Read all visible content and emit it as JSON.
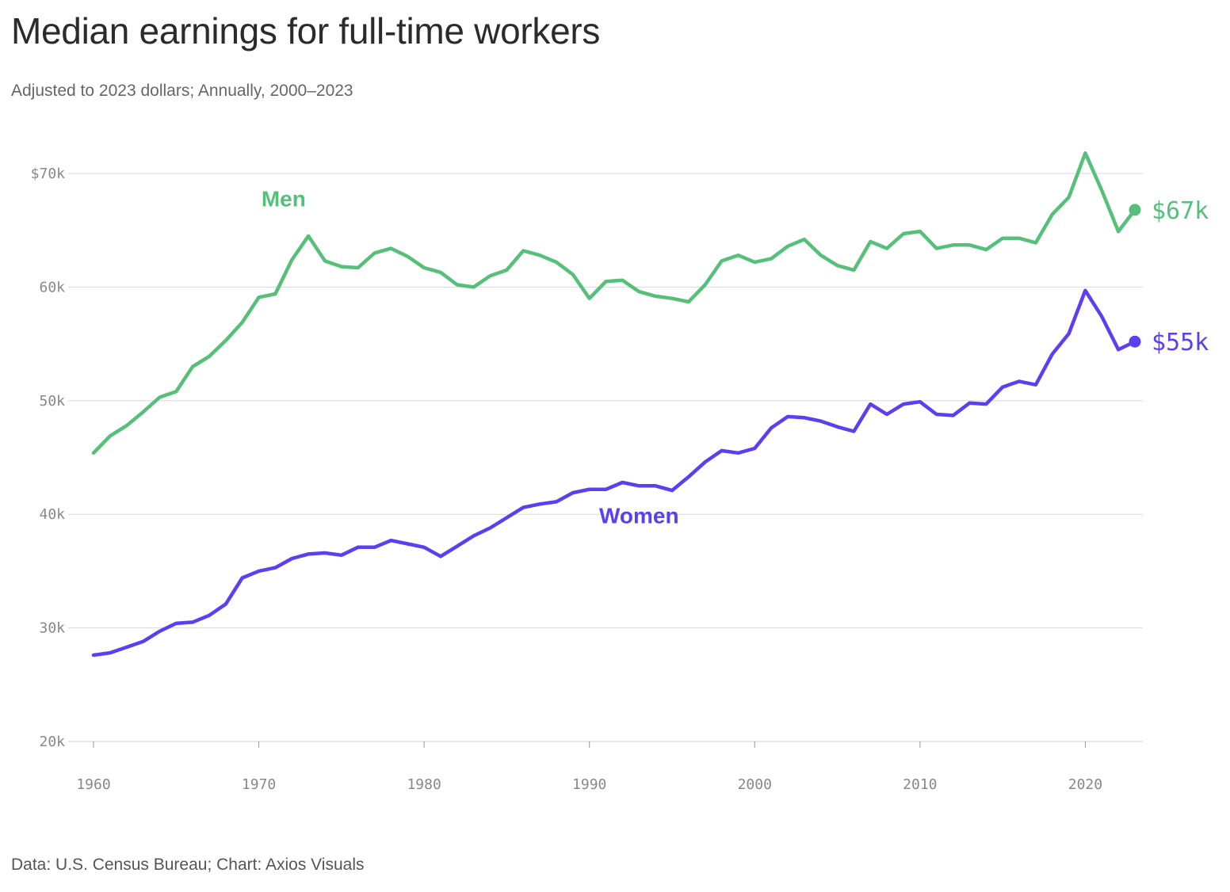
{
  "header": {
    "title": "Median earnings for full-time workers",
    "subtitle": "Adjusted to 2023 dollars; Annually, 2000–2023"
  },
  "footer": {
    "source": "Data: U.S. Census Bureau; Chart: Axios Visuals"
  },
  "colors": {
    "men": "#56c07a",
    "women": "#5b3ff0",
    "grid": "#d9d9d9",
    "axis": "#cccccc"
  },
  "chart_data": {
    "type": "line",
    "title": "Median earnings for full-time workers",
    "subtitle": "Adjusted to 2023 dollars; Annually, 2000–2023",
    "xlabel": "",
    "ylabel": "",
    "xlim": [
      1960,
      2023
    ],
    "ylim": [
      20000,
      70000
    ],
    "grid": true,
    "y_ticks": [
      {
        "value": 70000,
        "label": "$70k"
      },
      {
        "value": 60000,
        "label": "60k"
      },
      {
        "value": 50000,
        "label": "50k"
      },
      {
        "value": 40000,
        "label": "40k"
      },
      {
        "value": 30000,
        "label": "30k"
      },
      {
        "value": 20000,
        "label": "20k"
      }
    ],
    "x_ticks": [
      {
        "value": 1960,
        "label": "1960"
      },
      {
        "value": 1970,
        "label": "1970"
      },
      {
        "value": 1980,
        "label": "1980"
      },
      {
        "value": 1990,
        "label": "1990"
      },
      {
        "value": 2000,
        "label": "2000"
      },
      {
        "value": 2010,
        "label": "2010"
      },
      {
        "value": 2020,
        "label": "2020"
      }
    ],
    "x": [
      1960,
      1961,
      1962,
      1963,
      1964,
      1965,
      1966,
      1967,
      1968,
      1969,
      1970,
      1971,
      1972,
      1973,
      1974,
      1975,
      1976,
      1977,
      1978,
      1979,
      1980,
      1981,
      1982,
      1983,
      1984,
      1985,
      1986,
      1987,
      1988,
      1989,
      1990,
      1991,
      1992,
      1993,
      1994,
      1995,
      1996,
      1997,
      1998,
      1999,
      2000,
      2001,
      2002,
      2003,
      2004,
      2005,
      2006,
      2007,
      2008,
      2009,
      2010,
      2011,
      2012,
      2013,
      2014,
      2015,
      2016,
      2017,
      2018,
      2019,
      2020,
      2021,
      2022,
      2023
    ],
    "series": [
      {
        "name": "Men",
        "key": "men",
        "end_label": "$67k",
        "values": [
          45400,
          46900,
          47800,
          49000,
          50300,
          50800,
          53000,
          53900,
          55300,
          56900,
          59100,
          59400,
          62400,
          64500,
          62300,
          61800,
          61700,
          63000,
          63400,
          62700,
          61700,
          61300,
          60200,
          60000,
          61000,
          61500,
          63200,
          62800,
          62200,
          61100,
          59000,
          60500,
          60600,
          59600,
          59200,
          59000,
          58700,
          60200,
          62300,
          62800,
          62200,
          62500,
          63600,
          64200,
          62800,
          61900,
          61500,
          64000,
          63400,
          64700,
          64900,
          63400,
          63700,
          63700,
          63300,
          64300,
          64300,
          63900,
          66400,
          67900,
          71800,
          68500,
          64900,
          66800
        ]
      },
      {
        "name": "Women",
        "key": "women",
        "end_label": "$55k",
        "values": [
          27600,
          27800,
          28300,
          28800,
          29700,
          30400,
          30500,
          31100,
          32100,
          34400,
          35000,
          35300,
          36100,
          36500,
          36600,
          36400,
          37100,
          37100,
          37700,
          37400,
          37100,
          36300,
          37200,
          38100,
          38800,
          39700,
          40600,
          40900,
          41100,
          41900,
          42200,
          42200,
          42800,
          42500,
          42500,
          42100,
          43300,
          44600,
          45600,
          45400,
          45800,
          47600,
          48600,
          48500,
          48200,
          47700,
          47300,
          49700,
          48800,
          49700,
          49900,
          48800,
          48700,
          49800,
          49700,
          51200,
          51700,
          51400,
          54100,
          55900,
          59700,
          57400,
          54500,
          55200
        ]
      }
    ],
    "annotations": [
      {
        "series": "men",
        "text": "Men",
        "x": 1971.5,
        "y": 67800
      },
      {
        "series": "women",
        "text": "Women",
        "x": 1993,
        "y": 39900
      }
    ]
  }
}
